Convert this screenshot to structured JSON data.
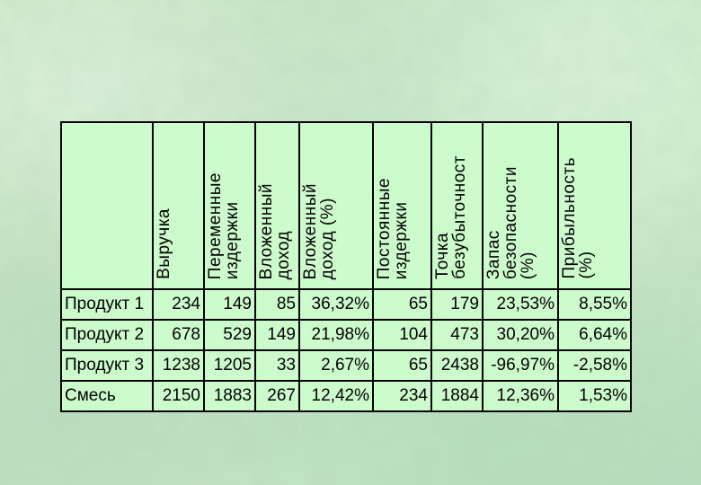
{
  "table": {
    "corner": "",
    "headers": [
      "Выручка",
      "Переменные\nиздержки",
      "Вложенный\nдоход",
      "Вложенный\nдоход (%)",
      "Постоянные\nиздержки",
      "Точка\nбезубыточност",
      "Запас\nбезопасности\n(%)",
      "Прибыльность\n(%)"
    ],
    "rows": [
      {
        "label": "Продукт 1",
        "cells": [
          "234",
          "149",
          "85",
          "36,32%",
          "65",
          "179",
          "23,53%",
          "8,55%"
        ]
      },
      {
        "label": "Продукт 2",
        "cells": [
          "678",
          "529",
          "149",
          "21,98%",
          "104",
          "473",
          "30,20%",
          "6,64%"
        ]
      },
      {
        "label": "Продукт 3",
        "cells": [
          "1238",
          "1205",
          "33",
          "2,67%",
          "65",
          "2438",
          "-96,97%",
          "-2,58%"
        ]
      },
      {
        "label": "Смесь",
        "cells": [
          "2150",
          "1883",
          "267",
          "12,42%",
          "234",
          "1884",
          "12,36%",
          "1,53%"
        ]
      }
    ]
  },
  "colors": {
    "table_fill": "#ccfccc",
    "background": "#c2e3bf",
    "border": "#000000"
  }
}
